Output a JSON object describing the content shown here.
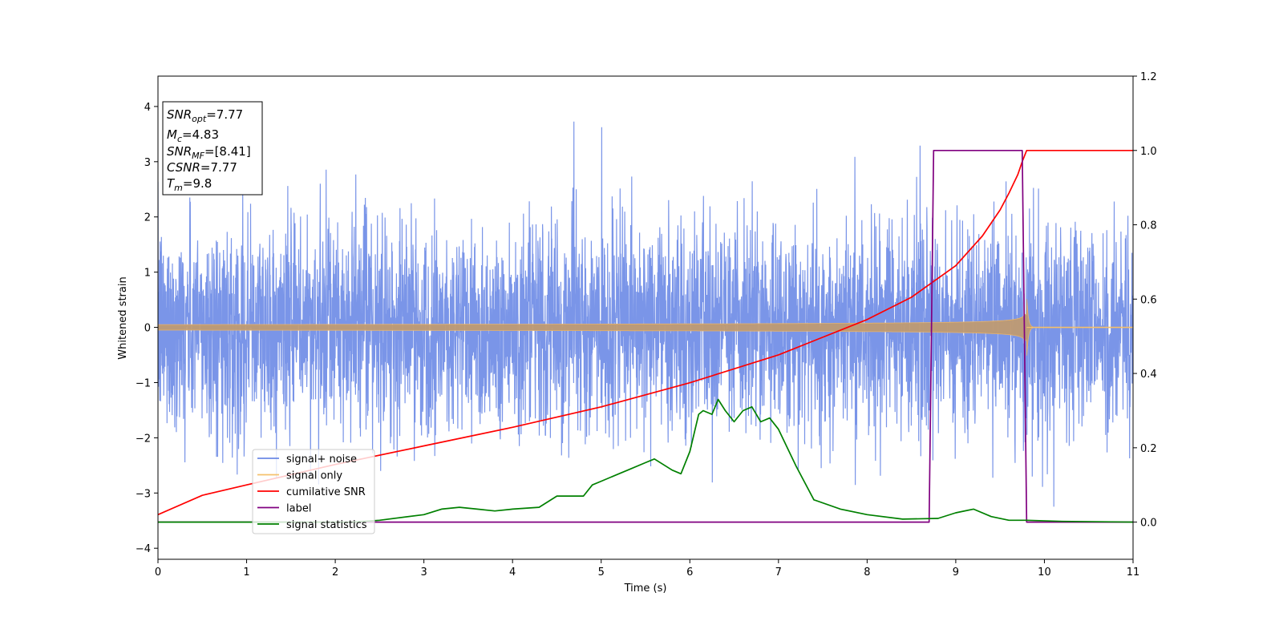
{
  "chart_data": {
    "type": "line",
    "title": "",
    "xlabel": "Time (s)",
    "ylabel": "Whitened strain",
    "y2label": "",
    "xlim": [
      0,
      11
    ],
    "ylim": [
      -4.2,
      4.55
    ],
    "y2lim": [
      -0.1,
      1.2
    ],
    "x_ticks": [
      "0",
      "1",
      "2",
      "3",
      "4",
      "5",
      "6",
      "7",
      "8",
      "9",
      "10",
      "11"
    ],
    "y_ticks": [
      {
        "value": 4,
        "label": "4"
      },
      {
        "value": 3,
        "label": "3"
      },
      {
        "value": 2,
        "label": "2"
      },
      {
        "value": 1,
        "label": "1"
      },
      {
        "value": 0,
        "label": "0"
      },
      {
        "value": -1,
        "label": "−1"
      },
      {
        "value": -2,
        "label": "−2"
      },
      {
        "value": -3,
        "label": "−3"
      },
      {
        "value": -4,
        "label": "−4"
      }
    ],
    "y2_ticks": [
      {
        "value": 1.2,
        "label": "1.2"
      },
      {
        "value": 1.0,
        "label": "1.0"
      },
      {
        "value": 0.8,
        "label": "0.8"
      },
      {
        "value": 0.6,
        "label": "0.6"
      },
      {
        "value": 0.4,
        "label": "0.4"
      },
      {
        "value": 0.2,
        "label": "0.2"
      },
      {
        "value": 0.0,
        "label": "0.0"
      }
    ],
    "grid": false,
    "legend_position": "lower-left",
    "annotation_lines": [
      {
        "name": "SNR",
        "sub": "opt",
        "value": "=7.77"
      },
      {
        "name": "M",
        "sub": "c",
        "value": "=4.83"
      },
      {
        "name": "SNR",
        "sub": "MF",
        "value": "=[8.41]"
      },
      {
        "name": "CSNR",
        "sub": "",
        "value": "=7.77"
      },
      {
        "name": "T",
        "sub": "m",
        "value": "=9.8"
      }
    ],
    "series": [
      {
        "name": "signal+ noise",
        "axis": "left",
        "color": "#6b8ae6",
        "kind": "noise",
        "noise_sigma": 1.0,
        "x_range": [
          0,
          11
        ]
      },
      {
        "name": "signal only",
        "axis": "left",
        "color": "#f5c16c",
        "kind": "chirp",
        "merger_time": 9.8,
        "peak_amplitude": 0.6,
        "start_amplitude": 0.05
      },
      {
        "name": "cumilative SNR",
        "axis": "right",
        "color": "#ff0000",
        "x": [
          0,
          0.5,
          1,
          2,
          3,
          4,
          5,
          6,
          7,
          8,
          8.5,
          9,
          9.3,
          9.5,
          9.6,
          9.7,
          9.75,
          9.8,
          11
        ],
        "y": [
          0.02,
          0.072,
          0.1,
          0.155,
          0.205,
          0.255,
          0.31,
          0.375,
          0.45,
          0.545,
          0.605,
          0.69,
          0.77,
          0.84,
          0.885,
          0.935,
          0.97,
          1.0,
          1.0
        ]
      },
      {
        "name": "label",
        "axis": "right",
        "color": "#800080",
        "x": [
          0,
          8.7,
          8.75,
          9.75,
          9.8,
          11
        ],
        "y": [
          0,
          0,
          1,
          1,
          0,
          0
        ]
      },
      {
        "name": "signal statistics",
        "axis": "right",
        "color": "#008000",
        "x": [
          0,
          2.2,
          2.5,
          3,
          3.2,
          3.4,
          3.6,
          3.8,
          4,
          4.3,
          4.5,
          4.6,
          4.8,
          4.9,
          5,
          5.2,
          5.3,
          5.5,
          5.6,
          5.8,
          5.9,
          6.0,
          6.1,
          6.15,
          6.25,
          6.32,
          6.4,
          6.5,
          6.6,
          6.7,
          6.8,
          6.9,
          7.0,
          7.2,
          7.4,
          7.7,
          8.0,
          8.4,
          8.8,
          9.0,
          9.2,
          9.4,
          9.6,
          9.8,
          10.2,
          11
        ],
        "y": [
          0,
          0,
          0.005,
          0.02,
          0.035,
          0.04,
          0.035,
          0.03,
          0.035,
          0.04,
          0.07,
          0.07,
          0.07,
          0.1,
          0.11,
          0.13,
          0.14,
          0.16,
          0.17,
          0.14,
          0.13,
          0.19,
          0.29,
          0.3,
          0.29,
          0.33,
          0.3,
          0.27,
          0.3,
          0.31,
          0.27,
          0.28,
          0.25,
          0.15,
          0.06,
          0.035,
          0.02,
          0.008,
          0.01,
          0.025,
          0.035,
          0.015,
          0.005,
          0.005,
          0.002,
          0
        ]
      }
    ]
  }
}
